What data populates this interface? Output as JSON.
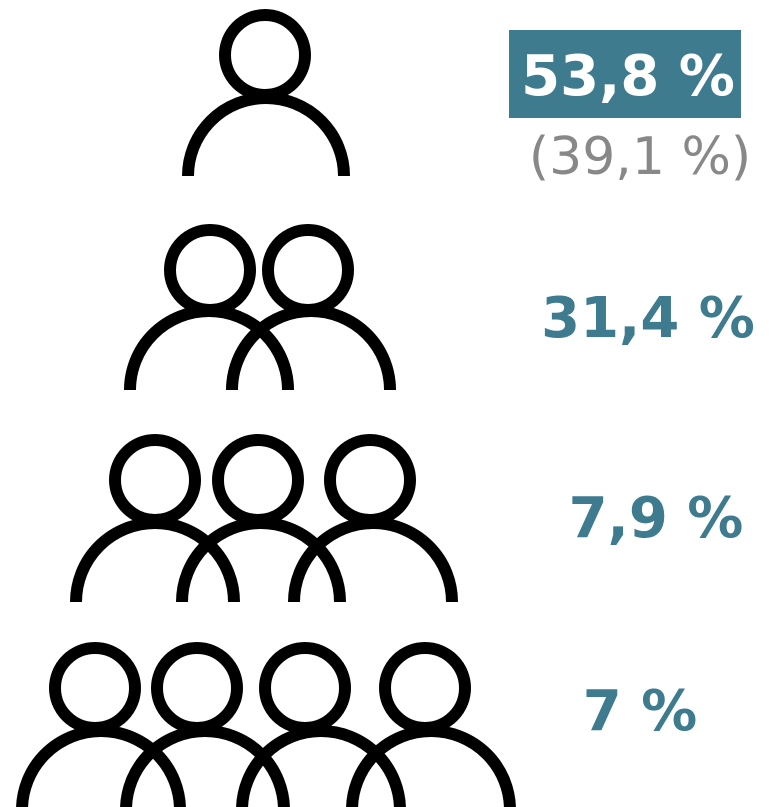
{
  "rows": [
    {
      "value": "53,8 %",
      "note": "(39,1 %)"
    },
    {
      "value": "31,4 %"
    },
    {
      "value": "7,9 %"
    },
    {
      "value": "7 %"
    }
  ]
}
